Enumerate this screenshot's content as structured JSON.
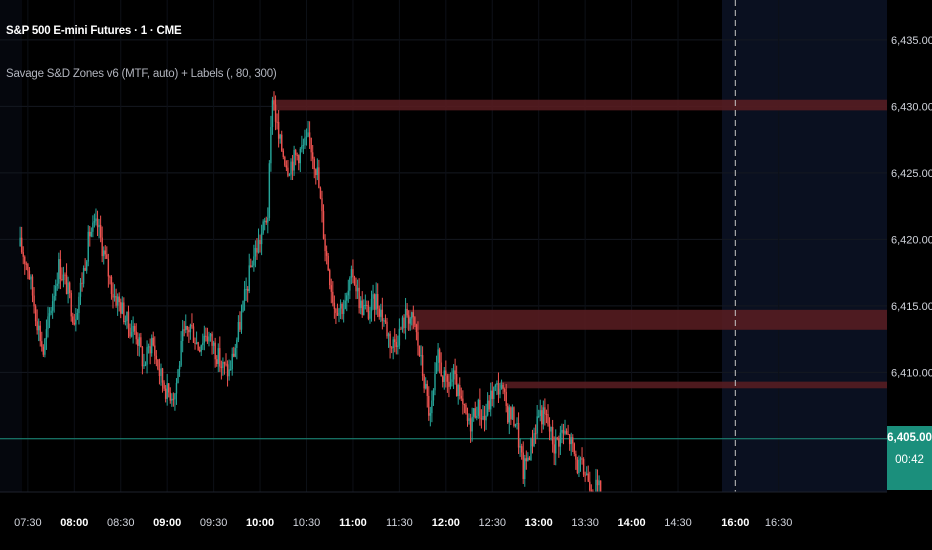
{
  "header": {
    "symbol": "S&P 500 E-mini Futures · 1 · CME",
    "indicator": "Savage S&D Zones v6 (MTF, auto) + Labels (, 80, 300)"
  },
  "price_badge": {
    "price": "6,405.00",
    "countdown": "00:42"
  },
  "colors": {
    "background": "#000000",
    "up_candle": "#26a69a",
    "down_candle": "#ef5350",
    "zone": "#5a1d22",
    "price_line": "#1b8f7c",
    "future_shade": "#0a1020"
  },
  "chart_data": {
    "type": "candlestick",
    "title": "S&P 500 E-mini Futures · 1 · CME",
    "ylim": [
      6401,
      6438
    ],
    "y_ticks": [
      "6,435.00",
      "6,430.00",
      "6,425.00",
      "6,420.00",
      "6,415.00",
      "6,410.00",
      "6,405.00"
    ],
    "y_tick_values": [
      6435,
      6430,
      6425,
      6420,
      6415,
      6410,
      6405
    ],
    "x_ticks": [
      "07:30",
      "08:00",
      "08:30",
      "09:00",
      "09:30",
      "10:00",
      "10:30",
      "11:00",
      "11:30",
      "12:00",
      "12:30",
      "13:00",
      "13:30",
      "14:00",
      "14:30",
      "16:00",
      "16:30"
    ],
    "x_tick_bold": [
      "08:00",
      "09:00",
      "10:00",
      "11:00",
      "12:00",
      "13:00",
      "14:00",
      "16:00"
    ],
    "grid": true,
    "last_price": 6405.0,
    "session_break_time": "16:00",
    "price_path": [
      [
        "07:25",
        6419.5
      ],
      [
        "07:30",
        6418.0
      ],
      [
        "07:35",
        6414.5
      ],
      [
        "07:40",
        6411.5
      ],
      [
        "07:45",
        6415.0
      ],
      [
        "07:50",
        6418.0
      ],
      [
        "07:55",
        6416.5
      ],
      [
        "08:00",
        6414.0
      ],
      [
        "08:05",
        6417.0
      ],
      [
        "08:10",
        6420.5
      ],
      [
        "08:15",
        6421.0
      ],
      [
        "08:20",
        6418.5
      ],
      [
        "08:25",
        6416.0
      ],
      [
        "08:30",
        6415.0
      ],
      [
        "08:35",
        6413.5
      ],
      [
        "08:40",
        6413.0
      ],
      [
        "08:45",
        6410.5
      ],
      [
        "08:50",
        6412.5
      ],
      [
        "08:55",
        6410.0
      ],
      [
        "09:00",
        6408.5
      ],
      [
        "09:05",
        6408.5
      ],
      [
        "09:10",
        6412.5
      ],
      [
        "09:15",
        6413.5
      ],
      [
        "09:20",
        6412.0
      ],
      [
        "09:25",
        6413.0
      ],
      [
        "09:30",
        6412.0
      ],
      [
        "09:35",
        6410.5
      ],
      [
        "09:40",
        6410.0
      ],
      [
        "09:45",
        6412.5
      ],
      [
        "09:50",
        6415.5
      ],
      [
        "09:55",
        6418.5
      ],
      [
        "10:00",
        6420.0
      ],
      [
        "10:05",
        6422.0
      ],
      [
        "10:08",
        6431.0
      ],
      [
        "10:12",
        6427.5
      ],
      [
        "10:18",
        6425.5
      ],
      [
        "10:25",
        6426.5
      ],
      [
        "10:32",
        6427.5
      ],
      [
        "10:37",
        6425.0
      ],
      [
        "10:42",
        6419.5
      ],
      [
        "10:48",
        6415.0
      ],
      [
        "10:55",
        6415.0
      ],
      [
        "11:00",
        6417.5
      ],
      [
        "11:05",
        6415.0
      ],
      [
        "11:10",
        6414.5
      ],
      [
        "11:15",
        6415.5
      ],
      [
        "11:20",
        6414.0
      ],
      [
        "11:25",
        6412.0
      ],
      [
        "11:30",
        6413.0
      ],
      [
        "11:35",
        6414.5
      ],
      [
        "11:40",
        6413.5
      ],
      [
        "11:45",
        6410.0
      ],
      [
        "11:50",
        6406.5
      ],
      [
        "11:55",
        6411.0
      ],
      [
        "12:00",
        6409.0
      ],
      [
        "12:05",
        6409.5
      ],
      [
        "12:10",
        6407.5
      ],
      [
        "12:15",
        6406.0
      ],
      [
        "12:20",
        6407.5
      ],
      [
        "12:25",
        6406.5
      ],
      [
        "12:30",
        6408.5
      ],
      [
        "12:35",
        6409.0
      ],
      [
        "12:40",
        6407.0
      ],
      [
        "12:45",
        6406.5
      ],
      [
        "12:50",
        6402.5
      ],
      [
        "12:55",
        6404.5
      ],
      [
        "13:00",
        6407.0
      ],
      [
        "13:05",
        6406.5
      ],
      [
        "13:10",
        6404.5
      ],
      [
        "13:15",
        6405.5
      ],
      [
        "13:20",
        6405.0
      ],
      [
        "13:25",
        6403.0
      ],
      [
        "13:30",
        6402.5
      ],
      [
        "13:35",
        6401.5
      ],
      [
        "13:40",
        6401.0
      ]
    ],
    "zones": [
      {
        "from": "10:08",
        "to": "16:45",
        "top": 6430.5,
        "bottom": 6429.7
      },
      {
        "from": "11:35",
        "to": "16:45",
        "top": 6414.7,
        "bottom": 6413.2
      },
      {
        "from": "12:35",
        "to": "16:45",
        "top": 6409.3,
        "bottom": 6408.8
      }
    ],
    "time_axis": {
      "start": "07:12",
      "end": "16:45"
    }
  }
}
